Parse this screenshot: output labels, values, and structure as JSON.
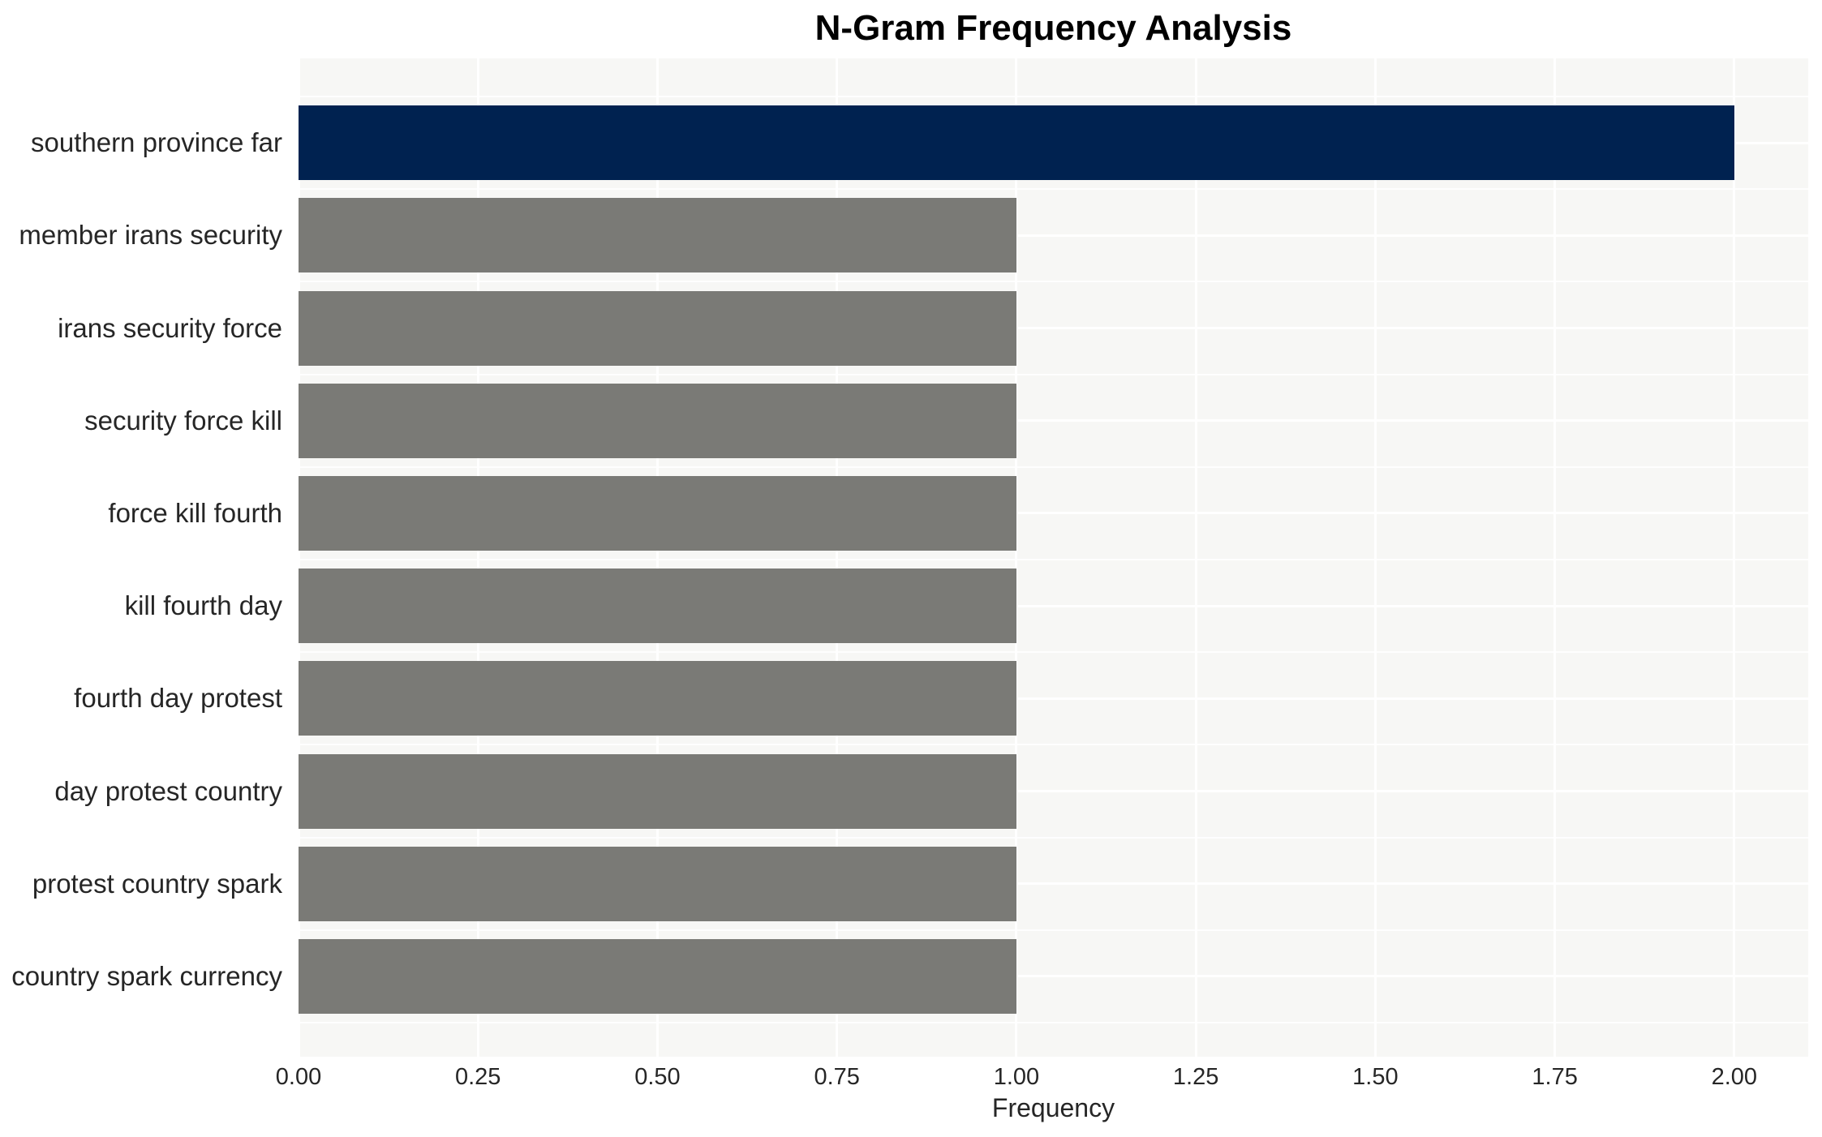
{
  "chart_data": {
    "type": "bar",
    "orientation": "horizontal",
    "title": "N-Gram Frequency Analysis",
    "xlabel": "Frequency",
    "ylabel": "",
    "categories": [
      "southern province far",
      "member irans security",
      "irans security force",
      "security force kill",
      "force kill fourth",
      "kill fourth day",
      "fourth day protest",
      "day protest country",
      "protest country spark",
      "country spark currency"
    ],
    "values": [
      2,
      1,
      1,
      1,
      1,
      1,
      1,
      1,
      1,
      1
    ],
    "bar_colors": [
      "#002250",
      "#7a7a76",
      "#7a7a76",
      "#7a7a76",
      "#7a7a76",
      "#7a7a76",
      "#7a7a76",
      "#7a7a76",
      "#7a7a76",
      "#7a7a76"
    ],
    "xlim": [
      0,
      2.103
    ],
    "xticks": [
      0.0,
      0.25,
      0.5,
      0.75,
      1.0,
      1.25,
      1.5,
      1.75,
      2.0
    ],
    "xtick_labels": [
      "0.00",
      "0.25",
      "0.50",
      "0.75",
      "1.00",
      "1.25",
      "1.50",
      "1.75",
      "2.00"
    ],
    "grid": true,
    "legend": false,
    "colors": {
      "panel_bg": "#f7f7f5",
      "grid_major": "#ffffff",
      "grid_minor": "rgba(255,255,255,0.85)",
      "highlight_bar": "#002250",
      "default_bar": "#7a7a76",
      "text": "#262626",
      "title_text": "#000000"
    }
  }
}
